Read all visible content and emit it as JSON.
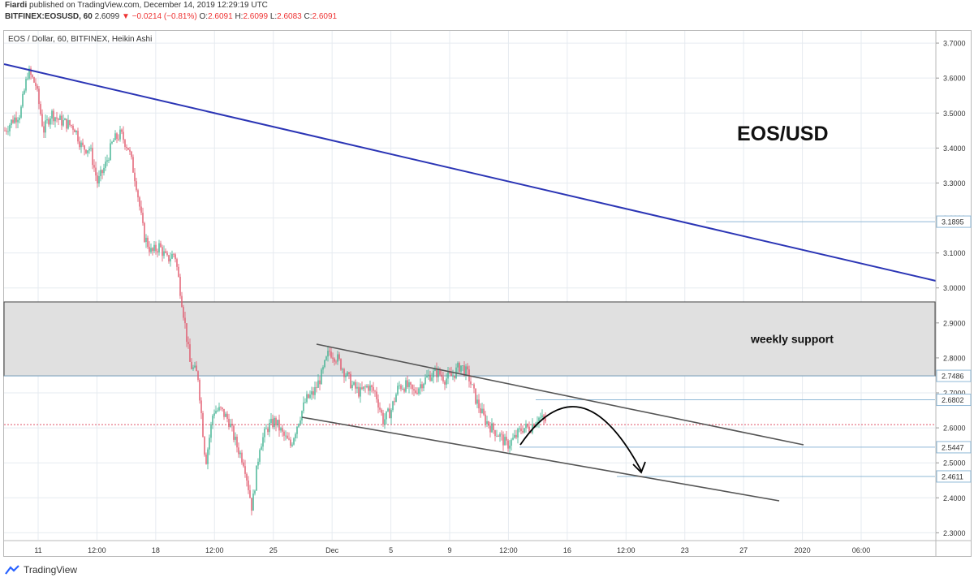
{
  "header": {
    "author": "Fiardi",
    "published_text": "published on TradingView.com, December 14, 2019 12:29:19 UTC",
    "symbol": "BITFINEX:EOSUSD, 60",
    "price": "2.6099",
    "change": "−0.0214 (−0.81%)",
    "o_label": "O:",
    "o_value": "2.6091",
    "h_label": "H:",
    "h_value": "2.6099",
    "l_label": "L:",
    "l_value": "2.6083",
    "c_label": "C:",
    "c_value": "2.6091"
  },
  "chart_data": {
    "type": "candlestick",
    "title": "EOS / Dollar, 60, BITFINEX, Heikin Ashi",
    "annotation_title": "EOS/USD",
    "support_label": "weekly support",
    "support_zone": [
      2.7486,
      2.96
    ],
    "y_range": [
      2.28,
      3.735
    ],
    "y_ticks": [
      "3.7000",
      "3.6000",
      "3.5000",
      "3.4000",
      "3.3000",
      "3.2000",
      "3.1000",
      "3.0000",
      "2.9000",
      "2.8000",
      "2.7000",
      "2.6000",
      "2.5000",
      "2.4000",
      "2.3000"
    ],
    "x_ticks": [
      "11",
      "12:00",
      "18",
      "12:00",
      "25",
      "Dec",
      "5",
      "9",
      "12:00",
      "16",
      "12:00",
      "23",
      "27",
      "2020",
      "06:00"
    ],
    "price_labels": [
      "3.1895",
      "2.7486",
      "2.6802",
      "2.5447",
      "2.4611"
    ],
    "current_price": 2.6091,
    "colors": {
      "up": "#3bb08f",
      "down": "#e0556a",
      "trendline": "#2b35b5",
      "channel": "#555555",
      "support_fill": "#e0e0e0"
    },
    "price_path": [
      3.45,
      3.48,
      3.5,
      3.62,
      3.58,
      3.45,
      3.5,
      3.48,
      3.47,
      3.46,
      3.4,
      3.4,
      3.3,
      3.35,
      3.42,
      3.44,
      3.4,
      3.3,
      3.15,
      3.1,
      3.12,
      3.08,
      3.1,
      2.95,
      2.78,
      2.75,
      2.5,
      2.65,
      2.65,
      2.62,
      2.55,
      2.5,
      2.37,
      2.55,
      2.6,
      2.62,
      2.58,
      2.55,
      2.62,
      2.68,
      2.7,
      2.75,
      2.82,
      2.8,
      2.76,
      2.72,
      2.7,
      2.72,
      2.7,
      2.62,
      2.65,
      2.72,
      2.72,
      2.7,
      2.73,
      2.75,
      2.76,
      2.74,
      2.75,
      2.78,
      2.75,
      2.68,
      2.63,
      2.6,
      2.58,
      2.55,
      2.57,
      2.6,
      2.6,
      2.63,
      2.62
    ]
  },
  "footer": {
    "brand": "TradingView"
  }
}
